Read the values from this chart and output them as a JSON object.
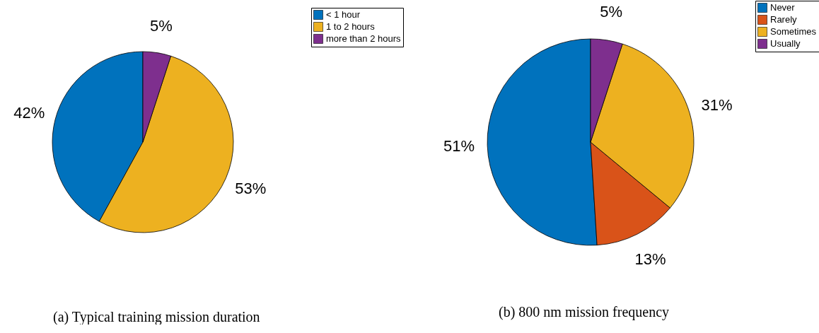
{
  "chart_data": [
    {
      "type": "pie",
      "title": "(a) Typical training mission duration",
      "categories": [
        "< 1 hour",
        "1 to 2 hours",
        "more than 2 hours"
      ],
      "values": [
        42,
        53,
        5
      ],
      "colors": [
        "#0072bd",
        "#edb120",
        "#7e2f8e"
      ],
      "value_labels": [
        "42%",
        "53%",
        "5%"
      ],
      "legend": "top right"
    },
    {
      "type": "pie",
      "title": "(b) 800 nm mission frequency",
      "categories": [
        "Never",
        "Rarely",
        "Sometimes",
        "Usually"
      ],
      "values": [
        51,
        13,
        31,
        5
      ],
      "colors": [
        "#0072bd",
        "#d95319",
        "#edb120",
        "#7e2f8e"
      ],
      "value_labels": [
        "51%",
        "13%",
        "31%",
        "5%"
      ],
      "legend": "top right"
    }
  ]
}
